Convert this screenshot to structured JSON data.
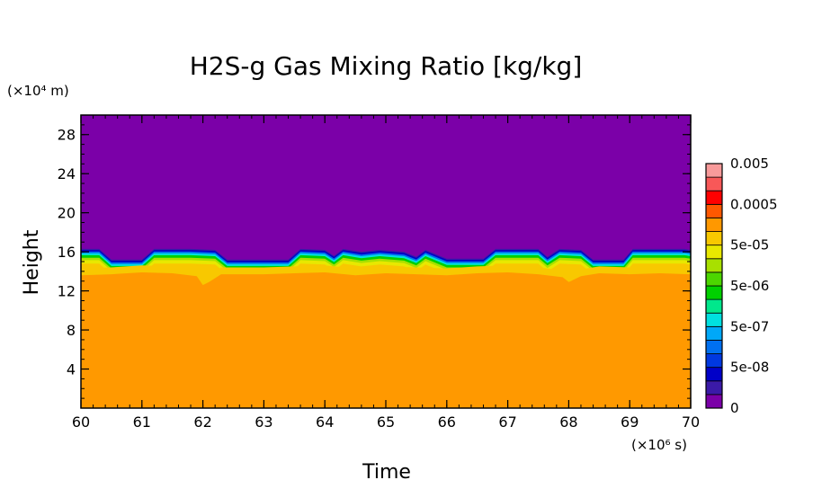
{
  "chart_data": {
    "type": "heatmap",
    "title": "H2S-g Gas Mixing Ratio [kg/kg]",
    "xlabel": "Time",
    "ylabel": "Height",
    "x_unit": "(×10⁶ s)",
    "y_unit": "(×10⁴ m)",
    "xlim": [
      60,
      70
    ],
    "ylim": [
      0,
      30
    ],
    "x_ticks": [
      {
        "value": 60,
        "label": "60"
      },
      {
        "value": 61,
        "label": "61"
      },
      {
        "value": 62,
        "label": "62"
      },
      {
        "value": 63,
        "label": "63"
      },
      {
        "value": 64,
        "label": "64"
      },
      {
        "value": 65,
        "label": "65"
      },
      {
        "value": 66,
        "label": "66"
      },
      {
        "value": 67,
        "label": "67"
      },
      {
        "value": 68,
        "label": "68"
      },
      {
        "value": 69,
        "label": "69"
      },
      {
        "value": 70,
        "label": "70"
      }
    ],
    "y_ticks": [
      {
        "value": 4,
        "label": "4"
      },
      {
        "value": 8,
        "label": "8"
      },
      {
        "value": 12,
        "label": "12"
      },
      {
        "value": 16,
        "label": "16"
      },
      {
        "value": 20,
        "label": "20"
      },
      {
        "value": 24,
        "label": "24"
      },
      {
        "value": 28,
        "label": "28"
      }
    ],
    "colorbar": {
      "levels": [
        "#7b00a8",
        "#3b1aa8",
        "#0000c8",
        "#0038e0",
        "#0070f0",
        "#00a8f8",
        "#00e0e0",
        "#00e88c",
        "#00d000",
        "#4cd600",
        "#a8e000",
        "#e8e800",
        "#f8c800",
        "#ff9800",
        "#ff5800",
        "#ff0000",
        "#f85858",
        "#f89a9a"
      ],
      "labels": [
        "0",
        "5e-08",
        "5e-07",
        "5e-06",
        "5e-05",
        "0.0005",
        "0.005"
      ]
    },
    "fields": {
      "lower_region_color": "#ff9900",
      "upper_region_color": "#7b00a8",
      "lower_region_value": "0.0005",
      "upper_region_value": "0",
      "lower_top_height": [
        [
          60.0,
          13.6
        ],
        [
          60.5,
          13.7
        ],
        [
          61.0,
          13.9
        ],
        [
          61.5,
          13.8
        ],
        [
          61.9,
          13.5
        ],
        [
          62.0,
          12.6
        ],
        [
          62.1,
          12.9
        ],
        [
          62.3,
          13.7
        ],
        [
          63.0,
          13.7
        ],
        [
          63.5,
          13.8
        ],
        [
          64.0,
          13.9
        ],
        [
          64.5,
          13.6
        ],
        [
          65.0,
          13.8
        ],
        [
          65.5,
          13.7
        ],
        [
          66.0,
          13.6
        ],
        [
          66.5,
          13.8
        ],
        [
          67.0,
          13.9
        ],
        [
          67.5,
          13.7
        ],
        [
          67.9,
          13.4
        ],
        [
          68.0,
          12.9
        ],
        [
          68.2,
          13.5
        ],
        [
          68.5,
          13.8
        ],
        [
          69.0,
          13.7
        ],
        [
          69.5,
          13.8
        ],
        [
          70.0,
          13.7
        ]
      ],
      "upper_bottom_height": [
        [
          60.0,
          16.3
        ],
        [
          60.3,
          16.3
        ],
        [
          60.5,
          15.2
        ],
        [
          61.0,
          15.2
        ],
        [
          61.2,
          16.3
        ],
        [
          61.8,
          16.3
        ],
        [
          62.2,
          16.2
        ],
        [
          62.4,
          15.2
        ],
        [
          63.4,
          15.2
        ],
        [
          63.6,
          16.3
        ],
        [
          64.0,
          16.2
        ],
        [
          64.15,
          15.6
        ],
        [
          64.3,
          16.3
        ],
        [
          64.6,
          16.0
        ],
        [
          64.9,
          16.2
        ],
        [
          65.3,
          16.0
        ],
        [
          65.5,
          15.5
        ],
        [
          65.65,
          16.2
        ],
        [
          66.0,
          15.3
        ],
        [
          66.6,
          15.3
        ],
        [
          66.8,
          16.3
        ],
        [
          67.5,
          16.3
        ],
        [
          67.65,
          15.5
        ],
        [
          67.85,
          16.3
        ],
        [
          68.2,
          16.2
        ],
        [
          68.4,
          15.2
        ],
        [
          68.9,
          15.2
        ],
        [
          69.05,
          16.3
        ],
        [
          69.9,
          16.3
        ],
        [
          70.0,
          16.2
        ]
      ]
    }
  }
}
